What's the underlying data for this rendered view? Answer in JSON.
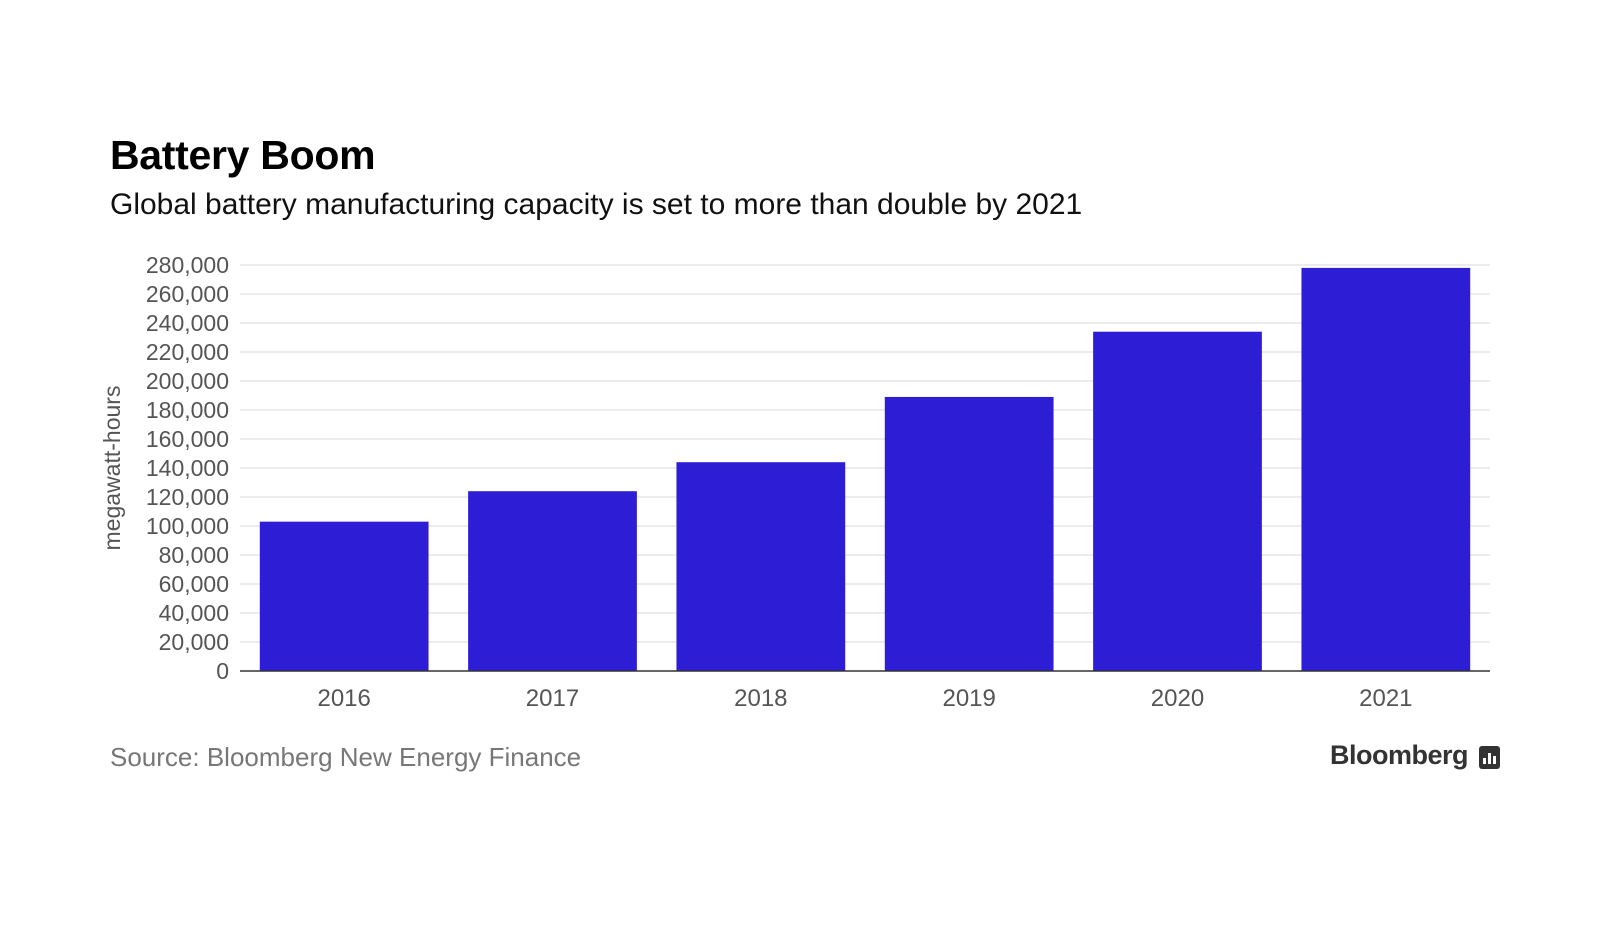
{
  "title": "Battery Boom",
  "subtitle": "Global battery manufacturing capacity is set to more than double by 2021",
  "source": "Source: Bloomberg New Energy Finance",
  "brand": "Bloomberg",
  "colors": {
    "bar": "#2d1ed6",
    "grid": "#e6e6e6",
    "axis": "#333333",
    "tick_text": "#555555"
  },
  "chart_data": {
    "type": "bar",
    "title": "Battery Boom",
    "subtitle": "Global battery manufacturing capacity is set to more than double by 2021",
    "xlabel": "",
    "ylabel": "megawatt-hours",
    "categories": [
      "2016",
      "2017",
      "2018",
      "2019",
      "2020",
      "2021"
    ],
    "values": [
      103000,
      124000,
      144000,
      189000,
      234000,
      278000
    ],
    "ylim": [
      0,
      280000
    ],
    "yticks": [
      0,
      20000,
      40000,
      60000,
      80000,
      100000,
      120000,
      140000,
      160000,
      180000,
      200000,
      220000,
      240000,
      260000,
      280000
    ],
    "ytick_labels": [
      "0",
      "20,000",
      "40,000",
      "60,000",
      "80,000",
      "100,000",
      "120,000",
      "140,000",
      "160,000",
      "180,000",
      "200,000",
      "220,000",
      "240,000",
      "260,000",
      "280,000"
    ],
    "grid": true
  }
}
